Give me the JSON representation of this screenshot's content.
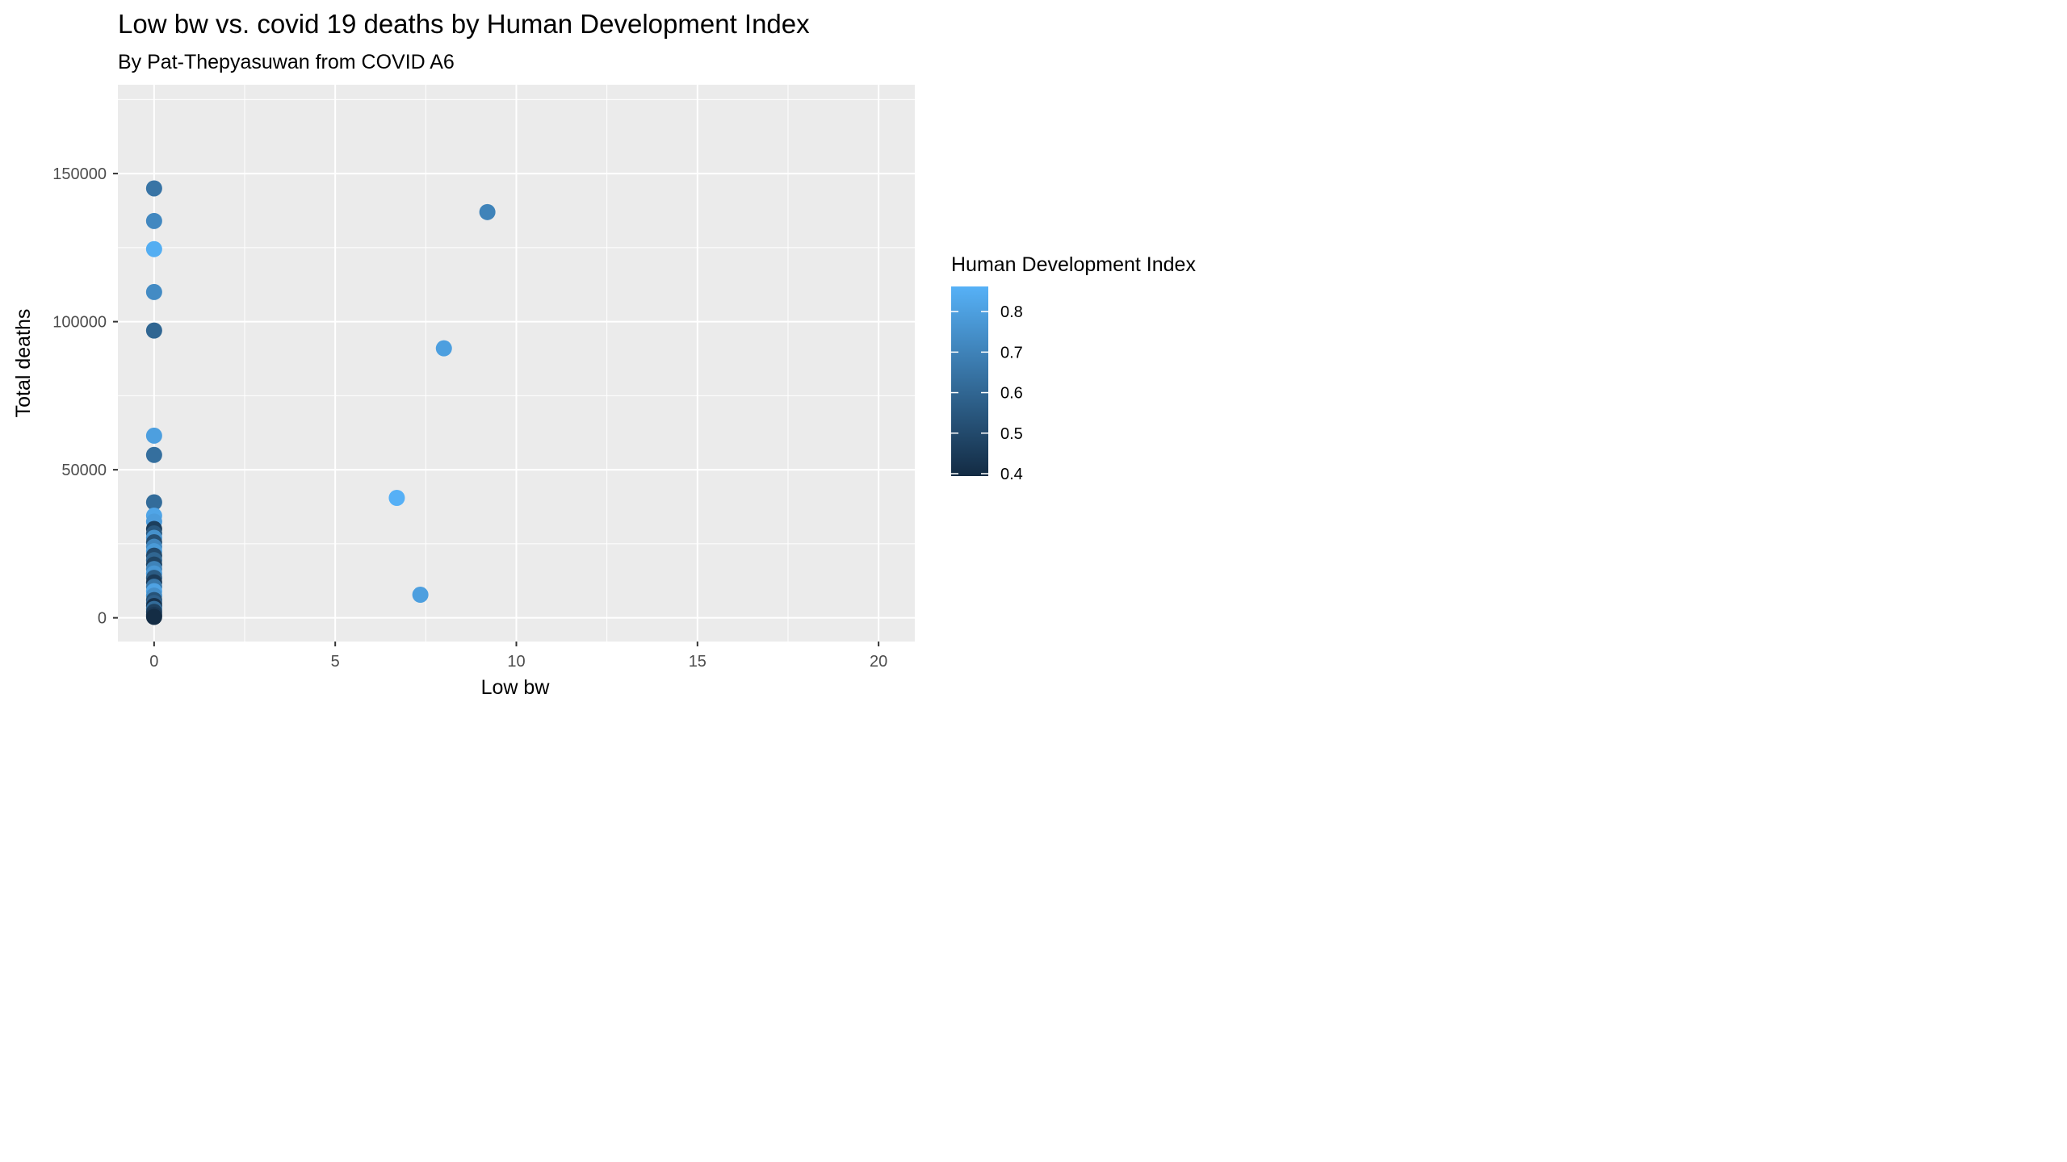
{
  "chart_data": {
    "type": "scatter",
    "title": "Low bw vs. covid 19 deaths by Human Development Index",
    "subtitle": "By Pat-Thepyasuwan from COVID A6",
    "xlabel": "Low bw",
    "ylabel": "Total deaths",
    "xlim": [
      -1,
      21
    ],
    "ylim": [
      -8000,
      180000
    ],
    "x_ticks": [
      0,
      5,
      10,
      15,
      20
    ],
    "x_tick_labels": [
      "0",
      "5",
      "10",
      "15",
      "20"
    ],
    "y_ticks": [
      0,
      50000,
      100000,
      150000
    ],
    "y_tick_labels": [
      "0",
      "50000",
      "100000",
      "150000"
    ],
    "grid": true,
    "legend": {
      "title": "Human Development Index",
      "placement": "right",
      "type": "colorbar",
      "range": [
        0.394,
        0.862
      ],
      "ticks": [
        0.4,
        0.5,
        0.6,
        0.7,
        0.8
      ],
      "tick_labels": [
        "0.4",
        "0.5",
        "0.6",
        "0.7",
        "0.8"
      ],
      "color_low": "#132B43",
      "color_high": "#56B1F7"
    },
    "colors": {
      "panel": "#EBEBEB",
      "grid": "#FFFFFF"
    },
    "points": [
      {
        "x": 0,
        "y": 145000,
        "hdi": 0.65
      },
      {
        "x": 0,
        "y": 134000,
        "hdi": 0.72
      },
      {
        "x": 0,
        "y": 124500,
        "hdi": 0.85
      },
      {
        "x": 0,
        "y": 110000,
        "hdi": 0.73
      },
      {
        "x": 0,
        "y": 97000,
        "hdi": 0.6
      },
      {
        "x": 0,
        "y": 61500,
        "hdi": 0.8
      },
      {
        "x": 0,
        "y": 55000,
        "hdi": 0.63
      },
      {
        "x": 0,
        "y": 39000,
        "hdi": 0.62
      },
      {
        "x": 0,
        "y": 34500,
        "hdi": 0.82
      },
      {
        "x": 0,
        "y": 32500,
        "hdi": 0.79
      },
      {
        "x": 0,
        "y": 30000,
        "hdi": 0.46
      },
      {
        "x": 0,
        "y": 28500,
        "hdi": 0.55
      },
      {
        "x": 0,
        "y": 27000,
        "hdi": 0.75
      },
      {
        "x": 0,
        "y": 25500,
        "hdi": 0.52
      },
      {
        "x": 0,
        "y": 24000,
        "hdi": 0.71
      },
      {
        "x": 0,
        "y": 22500,
        "hdi": 0.78
      },
      {
        "x": 0,
        "y": 21000,
        "hdi": 0.5
      },
      {
        "x": 0,
        "y": 19500,
        "hdi": 0.6
      },
      {
        "x": 0,
        "y": 18000,
        "hdi": 0.48
      },
      {
        "x": 0,
        "y": 16500,
        "hdi": 0.7
      },
      {
        "x": 0,
        "y": 15000,
        "hdi": 0.77
      },
      {
        "x": 0,
        "y": 13500,
        "hdi": 0.56
      },
      {
        "x": 0,
        "y": 12000,
        "hdi": 0.45
      },
      {
        "x": 0,
        "y": 10500,
        "hdi": 0.66
      },
      {
        "x": 0,
        "y": 9000,
        "hdi": 0.81
      },
      {
        "x": 0,
        "y": 7500,
        "hdi": 0.74
      },
      {
        "x": 0,
        "y": 6000,
        "hdi": 0.53
      },
      {
        "x": 0,
        "y": 5000,
        "hdi": 0.58
      },
      {
        "x": 0,
        "y": 4000,
        "hdi": 0.42
      },
      {
        "x": 0,
        "y": 3000,
        "hdi": 0.62
      },
      {
        "x": 0,
        "y": 2000,
        "hdi": 0.47
      },
      {
        "x": 0,
        "y": 1000,
        "hdi": 0.44
      },
      {
        "x": 0,
        "y": 300,
        "hdi": 0.4
      },
      {
        "x": 9.2,
        "y": 137000,
        "hdi": 0.7
      },
      {
        "x": 8.0,
        "y": 91000,
        "hdi": 0.8
      },
      {
        "x": 6.7,
        "y": 40500,
        "hdi": 0.86
      },
      {
        "x": 7.35,
        "y": 7800,
        "hdi": 0.8
      }
    ]
  }
}
